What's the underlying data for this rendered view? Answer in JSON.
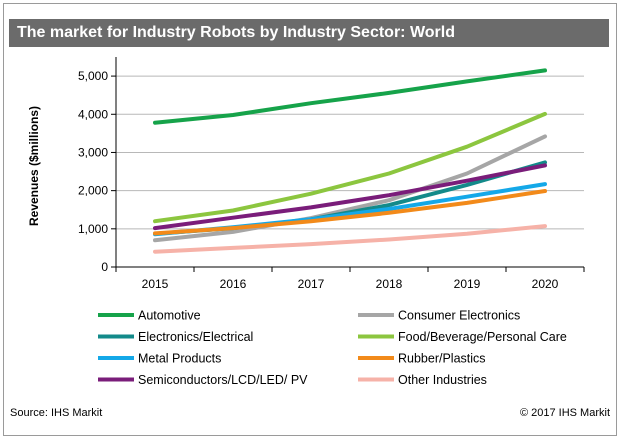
{
  "title": "The market for Industry Robots by Industry Sector: World",
  "source": "Source:  IHS Markit",
  "copyright": "© 2017 IHS Markit",
  "chart_data": {
    "type": "line",
    "ylabel": "Revenues ($millions)",
    "xlabel": "",
    "x": [
      "2015",
      "2016",
      "2017",
      "2018",
      "2019",
      "2020"
    ],
    "ylim": [
      0,
      5500
    ],
    "yticks": [
      0,
      1000,
      2000,
      3000,
      4000,
      5000
    ],
    "ytick_labels": [
      "0",
      "1,000",
      "2,000",
      "3,000",
      "4,000",
      "5,000"
    ],
    "grid": true,
    "legend_position": "bottom",
    "series": [
      {
        "name": "Automotive",
        "color": "#16a34a",
        "values": [
          3780,
          3980,
          4290,
          4560,
          4860,
          5150
        ]
      },
      {
        "name": "Consumer Electronics",
        "color": "#a6a6a6",
        "values": [
          700,
          920,
          1280,
          1750,
          2450,
          3420
        ]
      },
      {
        "name": "Electronics/Electrical",
        "color": "#138a8a",
        "values": [
          870,
          1020,
          1250,
          1620,
          2150,
          2740
        ]
      },
      {
        "name": "Food/Beverage/Personal Care",
        "color": "#8cc63f",
        "values": [
          1200,
          1480,
          1920,
          2450,
          3150,
          4010
        ]
      },
      {
        "name": "Metal Products",
        "color": "#14a8e8",
        "values": [
          860,
          1040,
          1250,
          1520,
          1840,
          2170
        ]
      },
      {
        "name": "Rubber/Plastics",
        "color": "#f28a1a",
        "values": [
          880,
          1020,
          1200,
          1420,
          1680,
          1990
        ]
      },
      {
        "name": "Semiconductors/LCD/LED/ PV",
        "color": "#7a1d7a",
        "values": [
          1020,
          1290,
          1560,
          1880,
          2260,
          2660
        ]
      },
      {
        "name": "Other Industries",
        "color": "#f6b2a8",
        "values": [
          400,
          500,
          600,
          720,
          870,
          1070
        ]
      }
    ]
  }
}
